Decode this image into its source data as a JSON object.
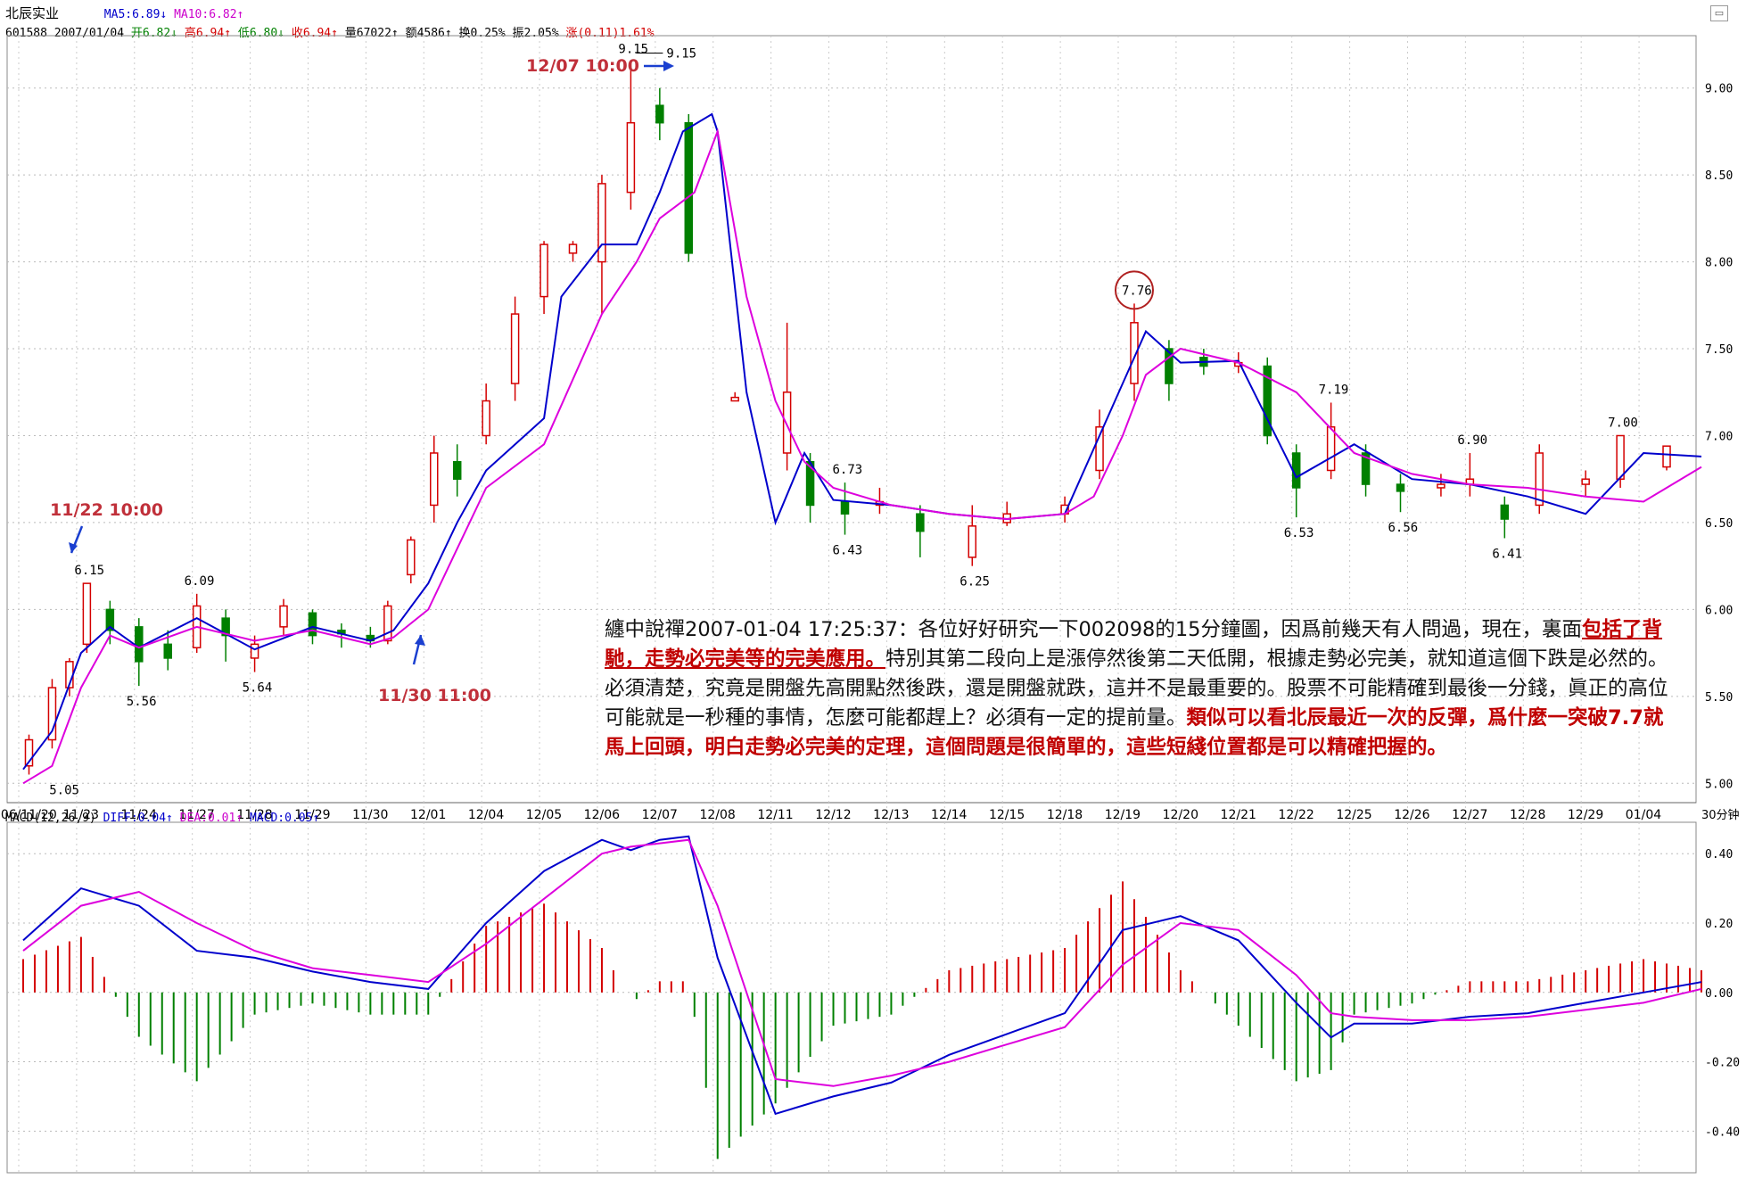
{
  "header": {
    "stock_name": "北辰实业",
    "ma5": "MA5:6.89",
    "ma10": "MA10:6.82",
    "code": "601588",
    "date": "2007/01/04",
    "open": "开6.82",
    "high": "高6.94",
    "low": "低6.80",
    "close": "收6.94",
    "volume": "量67022",
    "amount": "额4586",
    "turnover": "换0.25%",
    "amplitude": "振2.05%",
    "change": "涨(0.11)1.61%"
  },
  "macd_header": {
    "name": "MACD(12,26,9)",
    "diff": "DIFF:0.04",
    "dea": "DEA:0.01",
    "macd": "MACD:0.05"
  },
  "period_label": "30分钟",
  "colors": {
    "up": "#d40000",
    "down": "#008000",
    "ma5": "#0000cc",
    "ma10": "#dd00dd",
    "annotation": "#c0303a",
    "arrow": "#1a3fd0"
  },
  "annotations": {
    "a1": "11/22 10:00",
    "a2": "11/30 11:00",
    "a3": "12/07 10:00"
  },
  "note": {
    "p1": "纏中說禪2007-01-04 17:25:37：各位好好研究一下002098的15分鐘圖，因爲前幾天有人問過，現在，裏面",
    "p2": "包括了背馳，走勢必完美等的完美應用。",
    "p3": "特別其第二段向上是漲停然後第二天低開，根據走勢必完美，就知道這個下跌是必然的。必須清楚，究竟是開盤先高開點然後跌，還是開盤就跌，這并不是最重要的。股票不可能精確到最後一分錢，眞正的高位可能就是一秒種的事情，怎麼可能都趕上？必須有一定的提前量。",
    "p4": "類似可以看北辰最近一次的反彈，爲什麼一突破7.7就馬上回頭，明白走勢必完美的定理，這個問題是很簡單的，這些短綫位置都是可以精確把握的。"
  },
  "chart_data": [
    {
      "type": "candlestick",
      "categories": [
        "2006/11/20",
        "11/23",
        "11/24",
        "11/27",
        "11/28",
        "11/29",
        "11/30",
        "12/01",
        "12/04",
        "12/05",
        "12/06",
        "12/07",
        "12/08",
        "12/11",
        "12/12",
        "12/13",
        "12/14",
        "12/15",
        "12/18",
        "12/19",
        "12/20",
        "12/21",
        "12/22",
        "12/25",
        "12/26",
        "12/27",
        "12/28",
        "12/29",
        "01/04"
      ],
      "y_ticks": [
        "5.00",
        "5.50",
        "6.00",
        "6.50",
        "7.00",
        "7.50",
        "8.00",
        "8.50",
        "9.00"
      ],
      "ylim": [
        4.95,
        9.25
      ],
      "series": [
        {
          "name": "MA5",
          "x": [
            0,
            0.5,
            1,
            1.5,
            2,
            3,
            4,
            5,
            6,
            6.4,
            7,
            7.5,
            8,
            9,
            9.3,
            10,
            10.6,
            11,
            11.4,
            11.9,
            12,
            12.5,
            13,
            13.5,
            14,
            15,
            16,
            17,
            18,
            19,
            19.4,
            20,
            21,
            22,
            23,
            24,
            25,
            26,
            27,
            28,
            29
          ],
          "values": [
            5.08,
            5.3,
            5.75,
            5.9,
            5.78,
            5.95,
            5.77,
            5.9,
            5.82,
            5.88,
            6.15,
            6.5,
            6.8,
            7.1,
            7.8,
            8.1,
            8.1,
            8.4,
            8.75,
            8.85,
            8.75,
            7.25,
            6.5,
            6.9,
            6.63,
            6.6,
            6.55,
            6.52,
            6.55,
            7.3,
            7.6,
            7.42,
            7.43,
            6.76,
            6.95,
            6.75,
            6.72,
            6.65,
            6.55,
            6.9,
            6.88
          ]
        },
        {
          "name": "MA10",
          "x": [
            0,
            0.5,
            1,
            1.5,
            2,
            3,
            4,
            5,
            6,
            6.4,
            7,
            7.5,
            8,
            9,
            10,
            10.6,
            11,
            11.6,
            12,
            12.5,
            13,
            13.5,
            14,
            15,
            16,
            17,
            18,
            18.5,
            19,
            19.4,
            20,
            21,
            22,
            23,
            24,
            25,
            26,
            27,
            28,
            29
          ],
          "values": [
            5.0,
            5.1,
            5.55,
            5.85,
            5.78,
            5.9,
            5.82,
            5.88,
            5.8,
            5.84,
            6.0,
            6.35,
            6.7,
            6.95,
            7.7,
            8.0,
            8.25,
            8.4,
            8.75,
            7.8,
            7.2,
            6.85,
            6.7,
            6.6,
            6.55,
            6.52,
            6.55,
            6.65,
            7.0,
            7.35,
            7.5,
            7.42,
            7.25,
            6.9,
            6.78,
            6.72,
            6.7,
            6.65,
            6.62,
            6.82
          ]
        }
      ],
      "candles": [
        {
          "x": 0.1,
          "open": 5.1,
          "close": 5.25,
          "high": 5.28,
          "low": 5.05
        },
        {
          "x": 0.5,
          "open": 5.25,
          "close": 5.55,
          "high": 5.6,
          "low": 5.2
        },
        {
          "x": 0.8,
          "open": 5.55,
          "close": 5.7,
          "high": 5.72,
          "low": 5.5
        },
        {
          "x": 1.1,
          "open": 5.8,
          "close": 6.15,
          "high": 6.15,
          "low": 5.75
        },
        {
          "x": 1.5,
          "open": 6.0,
          "close": 5.88,
          "high": 6.05,
          "low": 5.8
        },
        {
          "x": 2.0,
          "open": 5.9,
          "close": 5.7,
          "high": 5.95,
          "low": 5.56
        },
        {
          "x": 2.5,
          "open": 5.8,
          "close": 5.72,
          "high": 5.88,
          "low": 5.65
        },
        {
          "x": 3.0,
          "open": 5.78,
          "close": 6.02,
          "high": 6.09,
          "low": 5.75
        },
        {
          "x": 3.5,
          "open": 5.95,
          "close": 5.85,
          "high": 6.0,
          "low": 5.7
        },
        {
          "x": 4.0,
          "open": 5.72,
          "close": 5.8,
          "high": 5.85,
          "low": 5.64
        },
        {
          "x": 4.5,
          "open": 5.9,
          "close": 6.02,
          "high": 6.06,
          "low": 5.85
        },
        {
          "x": 5.0,
          "open": 5.98,
          "close": 5.85,
          "high": 6.0,
          "low": 5.8
        },
        {
          "x": 5.5,
          "open": 5.88,
          "close": 5.86,
          "high": 5.92,
          "low": 5.78
        },
        {
          "x": 6.0,
          "open": 5.85,
          "close": 5.82,
          "high": 5.9,
          "low": 5.78
        },
        {
          "x": 6.3,
          "open": 5.82,
          "close": 6.02,
          "high": 6.05,
          "low": 5.8
        },
        {
          "x": 6.7,
          "open": 6.2,
          "close": 6.4,
          "high": 6.42,
          "low": 6.15
        },
        {
          "x": 7.1,
          "open": 6.6,
          "close": 6.9,
          "high": 7.0,
          "low": 6.5
        },
        {
          "x": 7.5,
          "open": 6.85,
          "close": 6.75,
          "high": 6.95,
          "low": 6.65
        },
        {
          "x": 8.0,
          "open": 7.0,
          "close": 7.2,
          "high": 7.3,
          "low": 6.95
        },
        {
          "x": 8.5,
          "open": 7.3,
          "close": 7.7,
          "high": 7.8,
          "low": 7.2
        },
        {
          "x": 9.0,
          "open": 7.8,
          "close": 8.1,
          "high": 8.12,
          "low": 7.7
        },
        {
          "x": 9.5,
          "open": 8.05,
          "close": 8.1,
          "high": 8.12,
          "low": 8.0
        },
        {
          "x": 10.0,
          "open": 8.0,
          "close": 8.45,
          "high": 8.5,
          "low": 7.7
        },
        {
          "x": 10.5,
          "open": 8.4,
          "close": 8.8,
          "high": 9.15,
          "low": 8.3
        },
        {
          "x": 11.0,
          "open": 8.9,
          "close": 8.8,
          "high": 9.0,
          "low": 8.7
        },
        {
          "x": 11.5,
          "open": 8.8,
          "close": 8.05,
          "high": 8.85,
          "low": 8.0
        },
        {
          "x": 12.3,
          "open": 7.2,
          "close": 7.22,
          "high": 7.25,
          "low": 7.2
        },
        {
          "x": 13.2,
          "open": 6.9,
          "close": 7.25,
          "high": 7.65,
          "low": 6.8
        },
        {
          "x": 13.6,
          "open": 6.85,
          "close": 6.6,
          "high": 6.9,
          "low": 6.5
        },
        {
          "x": 14.2,
          "open": 6.62,
          "close": 6.55,
          "high": 6.73,
          "low": 6.43
        },
        {
          "x": 14.8,
          "open": 6.6,
          "close": 6.62,
          "high": 6.7,
          "low": 6.55
        },
        {
          "x": 15.5,
          "open": 6.55,
          "close": 6.45,
          "high": 6.6,
          "low": 6.3
        },
        {
          "x": 16.4,
          "open": 6.3,
          "close": 6.48,
          "high": 6.6,
          "low": 6.25
        },
        {
          "x": 17.0,
          "open": 6.5,
          "close": 6.55,
          "high": 6.62,
          "low": 6.48
        },
        {
          "x": 18.0,
          "open": 6.55,
          "close": 6.6,
          "high": 6.65,
          "low": 6.5
        },
        {
          "x": 18.6,
          "open": 6.8,
          "close": 7.05,
          "high": 7.15,
          "low": 6.75
        },
        {
          "x": 19.2,
          "open": 7.3,
          "close": 7.65,
          "high": 7.76,
          "low": 7.2
        },
        {
          "x": 19.8,
          "open": 7.5,
          "close": 7.3,
          "high": 7.55,
          "low": 7.2
        },
        {
          "x": 20.4,
          "open": 7.45,
          "close": 7.4,
          "high": 7.5,
          "low": 7.35
        },
        {
          "x": 21.0,
          "open": 7.4,
          "close": 7.42,
          "high": 7.48,
          "low": 7.36
        },
        {
          "x": 21.5,
          "open": 7.4,
          "close": 7.0,
          "high": 7.45,
          "low": 6.95
        },
        {
          "x": 22.0,
          "open": 6.9,
          "close": 6.7,
          "high": 6.95,
          "low": 6.53
        },
        {
          "x": 22.6,
          "open": 6.8,
          "close": 7.05,
          "high": 7.19,
          "low": 6.75
        },
        {
          "x": 23.2,
          "open": 6.9,
          "close": 6.72,
          "high": 6.95,
          "low": 6.65
        },
        {
          "x": 23.8,
          "open": 6.72,
          "close": 6.68,
          "high": 6.78,
          "low": 6.56
        },
        {
          "x": 24.5,
          "open": 6.7,
          "close": 6.72,
          "high": 6.78,
          "low": 6.65
        },
        {
          "x": 25.0,
          "open": 6.72,
          "close": 6.75,
          "high": 6.9,
          "low": 6.65
        },
        {
          "x": 25.6,
          "open": 6.6,
          "close": 6.52,
          "high": 6.65,
          "low": 6.41
        },
        {
          "x": 26.2,
          "open": 6.6,
          "close": 6.9,
          "high": 6.95,
          "low": 6.55
        },
        {
          "x": 27.0,
          "open": 6.72,
          "close": 6.75,
          "high": 6.8,
          "low": 6.65
        },
        {
          "x": 27.6,
          "open": 6.75,
          "close": 7.0,
          "high": 7.0,
          "low": 6.7
        },
        {
          "x": 28.4,
          "open": 6.82,
          "close": 6.94,
          "high": 6.94,
          "low": 6.8
        }
      ],
      "labels": [
        {
          "text": "5.05",
          "x": 0.05,
          "y": 5.05
        },
        {
          "text": "6.15",
          "x": 1.1,
          "y": 6.15
        },
        {
          "text": "5.56",
          "x": 2.0,
          "y": 5.56
        },
        {
          "text": "6.09",
          "x": 3.0,
          "y": 6.09
        },
        {
          "text": "5.64",
          "x": 4.0,
          "y": 5.64
        },
        {
          "text": "9.15",
          "x": 10.5,
          "y": 9.15
        },
        {
          "text": "6.73",
          "x": 14.2,
          "y": 6.73
        },
        {
          "text": "6.43",
          "x": 14.2,
          "y": 6.43
        },
        {
          "text": "6.25",
          "x": 16.4,
          "y": 6.25
        },
        {
          "text": "7.76",
          "x": 19.2,
          "y": 7.76
        },
        {
          "text": "7.19",
          "x": 22.6,
          "y": 7.19
        },
        {
          "text": "6.53",
          "x": 22.0,
          "y": 6.53
        },
        {
          "text": "6.90",
          "x": 25.0,
          "y": 6.9
        },
        {
          "text": "6.56",
          "x": 23.8,
          "y": 6.56
        },
        {
          "text": "6.41",
          "x": 25.6,
          "y": 6.41
        },
        {
          "text": "7.00",
          "x": 27.6,
          "y": 7.0
        }
      ]
    },
    {
      "type": "line",
      "title": "MACD(12,26,9)",
      "y_ticks": [
        "0.40",
        "0.20",
        "0.00",
        "-0.20",
        "-0.40"
      ],
      "ylim": [
        -0.52,
        0.47
      ],
      "series": [
        {
          "name": "DIFF",
          "x": [
            0,
            1,
            2,
            3,
            4,
            5,
            6,
            7,
            8,
            9,
            10,
            10.5,
            11,
            11.5,
            12,
            13,
            14,
            15,
            16,
            17,
            18,
            19,
            20,
            21,
            22,
            22.6,
            23,
            24,
            25,
            26,
            27,
            28,
            29
          ],
          "values": [
            0.15,
            0.3,
            0.25,
            0.12,
            0.1,
            0.06,
            0.03,
            0.01,
            0.2,
            0.35,
            0.44,
            0.41,
            0.44,
            0.45,
            0.1,
            -0.35,
            -0.3,
            -0.26,
            -0.18,
            -0.12,
            -0.06,
            0.18,
            0.22,
            0.15,
            -0.03,
            -0.13,
            -0.09,
            -0.09,
            -0.07,
            -0.06,
            -0.03,
            0.0,
            0.03
          ]
        },
        {
          "name": "DEA",
          "x": [
            0,
            1,
            2,
            3,
            4,
            5,
            6,
            7,
            8,
            9,
            10,
            10.5,
            11,
            11.5,
            12,
            13,
            14,
            15,
            16,
            17,
            18,
            19,
            20,
            21,
            22,
            22.6,
            23,
            24,
            25,
            26,
            27,
            28,
            29
          ],
          "values": [
            0.12,
            0.25,
            0.29,
            0.2,
            0.12,
            0.07,
            0.05,
            0.03,
            0.14,
            0.27,
            0.4,
            0.42,
            0.43,
            0.44,
            0.25,
            -0.25,
            -0.27,
            -0.24,
            -0.2,
            -0.15,
            -0.1,
            0.08,
            0.2,
            0.18,
            0.05,
            -0.06,
            -0.07,
            -0.08,
            -0.08,
            -0.07,
            -0.05,
            -0.03,
            0.01
          ]
        }
      ]
    }
  ]
}
